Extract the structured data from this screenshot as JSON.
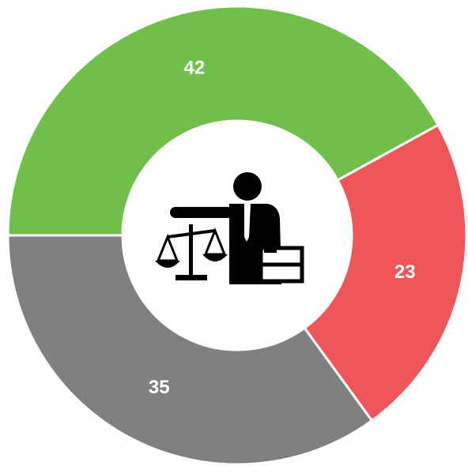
{
  "chart_data": {
    "type": "donut",
    "categories": [
      null,
      null,
      null
    ],
    "series": [
      {
        "values": [
          42,
          23,
          35
        ],
        "colors": [
          "#70bf4b",
          "#f0555a",
          "#808080"
        ]
      }
    ],
    "start_angle": 270,
    "direction": "clockwise"
  }
}
